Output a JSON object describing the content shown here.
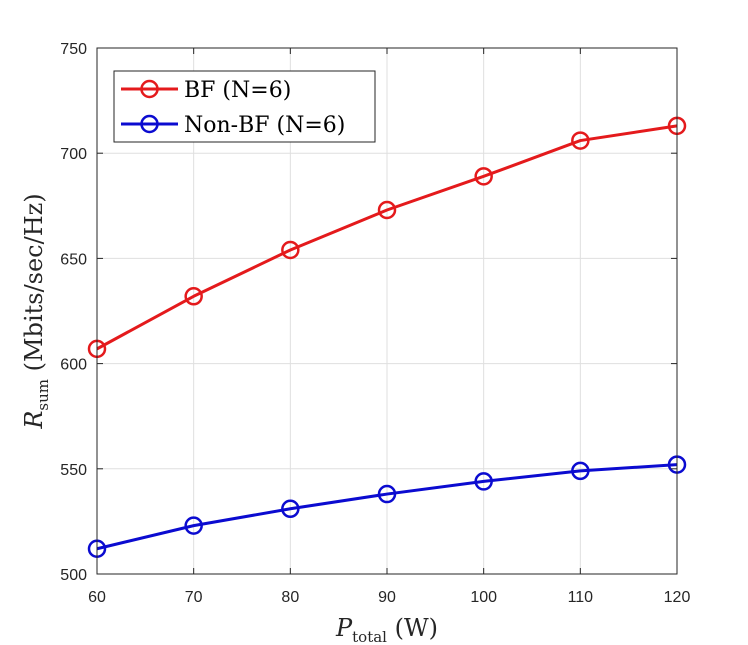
{
  "chart_data": {
    "type": "line",
    "xlabel": {
      "main": "P",
      "sub": "total",
      "unit": " (W)"
    },
    "ylabel": {
      "main": "R",
      "sub": "sum",
      "unit": " (Mbits/sec/Hz)"
    },
    "xlim": [
      60,
      120
    ],
    "ylim": [
      500,
      750
    ],
    "xticks": [
      60,
      70,
      80,
      90,
      100,
      110,
      120
    ],
    "yticks": [
      500,
      550,
      600,
      650,
      700,
      750
    ],
    "grid": true,
    "legend_position": "top-left",
    "x": [
      60,
      70,
      80,
      90,
      100,
      110,
      120
    ],
    "series": [
      {
        "name": "BF (N=6)",
        "color": "#e41a1c",
        "marker": "circle",
        "values": [
          607,
          632,
          654,
          673,
          689,
          706,
          713
        ]
      },
      {
        "name": "Non-BF (N=6)",
        "color": "#0b0bd0",
        "marker": "circle",
        "values": [
          512,
          523,
          531,
          538,
          544,
          549,
          552
        ]
      }
    ]
  }
}
